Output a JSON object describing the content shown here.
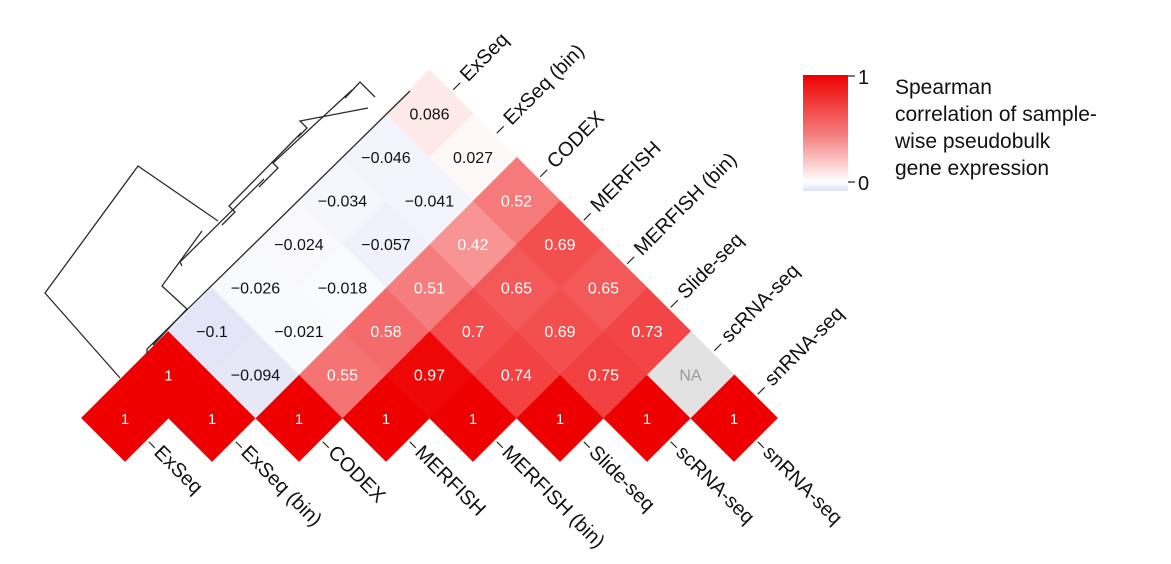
{
  "chart_data": {
    "type": "heatmap",
    "variables": [
      "ExSeq",
      "ExSeq (bin)",
      "CODEX",
      "MERFISH",
      "MERFISH (bin)",
      "Slide-seq",
      "scRNA-seq",
      "snRNA-seq"
    ],
    "cells": [
      {
        "row": "ExSeq",
        "col": "ExSeq",
        "label": "1",
        "value": 1
      },
      {
        "row": "ExSeq (bin)",
        "col": "ExSeq (bin)",
        "label": "1",
        "value": 1
      },
      {
        "row": "CODEX",
        "col": "CODEX",
        "label": "1",
        "value": 1
      },
      {
        "row": "MERFISH",
        "col": "MERFISH",
        "label": "1",
        "value": 1
      },
      {
        "row": "MERFISH (bin)",
        "col": "MERFISH (bin)",
        "label": "1",
        "value": 1
      },
      {
        "row": "Slide-seq",
        "col": "Slide-seq",
        "label": "1",
        "value": 1
      },
      {
        "row": "scRNA-seq",
        "col": "scRNA-seq",
        "label": "1",
        "value": 1
      },
      {
        "row": "snRNA-seq",
        "col": "snRNA-seq",
        "label": "1",
        "value": 1
      },
      {
        "row": "ExSeq",
        "col": "ExSeq (bin)",
        "label": "1",
        "value": 1
      },
      {
        "row": "ExSeq (bin)",
        "col": "CODEX",
        "label": "−0.094",
        "value": -0.094
      },
      {
        "row": "CODEX",
        "col": "MERFISH",
        "label": "0.55",
        "value": 0.55
      },
      {
        "row": "MERFISH",
        "col": "MERFISH (bin)",
        "label": "0.97",
        "value": 0.97
      },
      {
        "row": "MERFISH (bin)",
        "col": "Slide-seq",
        "label": "0.74",
        "value": 0.74
      },
      {
        "row": "Slide-seq",
        "col": "scRNA-seq",
        "label": "0.75",
        "value": 0.75
      },
      {
        "row": "scRNA-seq",
        "col": "snRNA-seq",
        "label": "NA",
        "value": null
      },
      {
        "row": "ExSeq",
        "col": "CODEX",
        "label": "−0.1",
        "value": -0.1
      },
      {
        "row": "ExSeq (bin)",
        "col": "MERFISH",
        "label": "−0.021",
        "value": -0.021
      },
      {
        "row": "CODEX",
        "col": "MERFISH (bin)",
        "label": "0.58",
        "value": 0.58
      },
      {
        "row": "MERFISH",
        "col": "Slide-seq",
        "label": "0.7",
        "value": 0.7
      },
      {
        "row": "MERFISH (bin)",
        "col": "scRNA-seq",
        "label": "0.69",
        "value": 0.69
      },
      {
        "row": "Slide-seq",
        "col": "snRNA-seq",
        "label": "0.73",
        "value": 0.73
      },
      {
        "row": "ExSeq",
        "col": "MERFISH",
        "label": "−0.026",
        "value": -0.026
      },
      {
        "row": "ExSeq (bin)",
        "col": "MERFISH (bin)",
        "label": "−0.018",
        "value": -0.018
      },
      {
        "row": "CODEX",
        "col": "Slide-seq",
        "label": "0.51",
        "value": 0.51
      },
      {
        "row": "MERFISH",
        "col": "scRNA-seq",
        "label": "0.65",
        "value": 0.65
      },
      {
        "row": "MERFISH (bin)",
        "col": "snRNA-seq",
        "label": "0.65",
        "value": 0.65
      },
      {
        "row": "ExSeq",
        "col": "MERFISH (bin)",
        "label": "−0.024",
        "value": -0.024
      },
      {
        "row": "ExSeq (bin)",
        "col": "Slide-seq",
        "label": "−0.057",
        "value": -0.057
      },
      {
        "row": "CODEX",
        "col": "scRNA-seq",
        "label": "0.42",
        "value": 0.42
      },
      {
        "row": "MERFISH",
        "col": "snRNA-seq",
        "label": "0.69",
        "value": 0.69
      },
      {
        "row": "ExSeq",
        "col": "Slide-seq",
        "label": "−0.034",
        "value": -0.034
      },
      {
        "row": "ExSeq (bin)",
        "col": "scRNA-seq",
        "label": "−0.041",
        "value": -0.041
      },
      {
        "row": "CODEX",
        "col": "snRNA-seq",
        "label": "0.52",
        "value": 0.52
      },
      {
        "row": "ExSeq",
        "col": "scRNA-seq",
        "label": "−0.046",
        "value": -0.046
      },
      {
        "row": "ExSeq (bin)",
        "col": "snRNA-seq",
        "label": "0.027",
        "value": 0.027
      },
      {
        "row": "ExSeq",
        "col": "snRNA-seq",
        "label": "0.086",
        "value": 0.086
      }
    ],
    "colorbar": {
      "ticks": [
        "1",
        "0"
      ],
      "max_color": "#ee0000",
      "zero_color": "#ffffff",
      "negative_color": "#e4e6f8",
      "na_color": "#e2e2e2"
    },
    "legend_title_lines": [
      "Spearman",
      "correlation of sample-",
      "wise pseudobulk",
      "gene expression"
    ],
    "dendrogram": "hierarchical clustering tree over the eight rows"
  }
}
